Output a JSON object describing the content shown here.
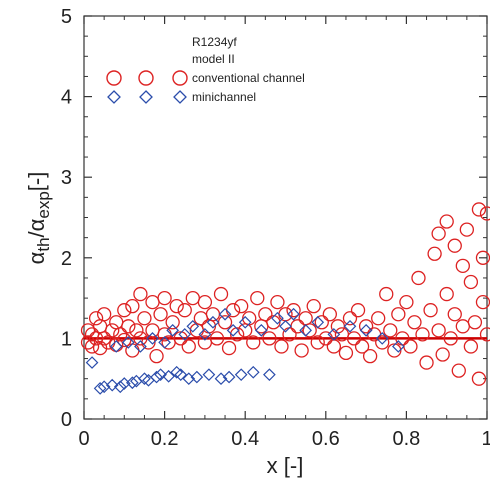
{
  "chart_data": {
    "type": "scatter",
    "title": "",
    "xlabel": "x [-]",
    "ylabel_parts": {
      "alpha": "α",
      "th": "th",
      "slash": "/",
      "exp": "exp",
      "unit": "[-]"
    },
    "xlim": [
      0,
      1
    ],
    "ylim": [
      0,
      5
    ],
    "x_ticks": [
      "0",
      "0.2",
      "0.4",
      "0.6",
      "0.8",
      "1"
    ],
    "y_ticks": [
      "0",
      "1",
      "2",
      "3",
      "4",
      "5"
    ],
    "legend": {
      "refrigerant": "R1234yf",
      "model": "model II",
      "placement": "top-center"
    },
    "reference_line": {
      "y": 1,
      "color": "#cc0000"
    },
    "series": [
      {
        "name": "conventional channel",
        "marker": "circle",
        "color": "#dd2222",
        "points": [
          [
            0.01,
            0.95
          ],
          [
            0.01,
            1.1
          ],
          [
            0.02,
            1.05
          ],
          [
            0.02,
            0.9
          ],
          [
            0.03,
            1.25
          ],
          [
            0.03,
            1.0
          ],
          [
            0.04,
            1.15
          ],
          [
            0.04,
            0.88
          ],
          [
            0.05,
            1.0
          ],
          [
            0.05,
            1.3
          ],
          [
            0.06,
            0.95
          ],
          [
            0.07,
            1.1
          ],
          [
            0.08,
            1.2
          ],
          [
            0.08,
            0.92
          ],
          [
            0.09,
            1.05
          ],
          [
            0.1,
            1.35
          ],
          [
            0.1,
            0.98
          ],
          [
            0.11,
            1.15
          ],
          [
            0.12,
            0.85
          ],
          [
            0.12,
            1.4
          ],
          [
            0.13,
            1.1
          ],
          [
            0.14,
            1.55
          ],
          [
            0.14,
            1.0
          ],
          [
            0.15,
            1.25
          ],
          [
            0.16,
            0.95
          ],
          [
            0.17,
            1.45
          ],
          [
            0.17,
            1.1
          ],
          [
            0.18,
            0.78
          ],
          [
            0.19,
            1.3
          ],
          [
            0.2,
            1.05
          ],
          [
            0.2,
            1.5
          ],
          [
            0.21,
            0.95
          ],
          [
            0.22,
            1.2
          ],
          [
            0.23,
            1.4
          ],
          [
            0.24,
            1.0
          ],
          [
            0.25,
            1.35
          ],
          [
            0.26,
            0.9
          ],
          [
            0.27,
            1.5
          ],
          [
            0.28,
            1.1
          ],
          [
            0.29,
            1.25
          ],
          [
            0.3,
            0.95
          ],
          [
            0.3,
            1.45
          ],
          [
            0.31,
            1.15
          ],
          [
            0.32,
            1.3
          ],
          [
            0.33,
            1.0
          ],
          [
            0.34,
            1.55
          ],
          [
            0.35,
            1.2
          ],
          [
            0.36,
            0.88
          ],
          [
            0.37,
            1.35
          ],
          [
            0.38,
            1.05
          ],
          [
            0.39,
            1.4
          ],
          [
            0.4,
            1.1
          ],
          [
            0.41,
            1.25
          ],
          [
            0.42,
            0.95
          ],
          [
            0.43,
            1.5
          ],
          [
            0.44,
            1.15
          ],
          [
            0.45,
            1.3
          ],
          [
            0.46,
            1.0
          ],
          [
            0.47,
            1.2
          ],
          [
            0.48,
            1.45
          ],
          [
            0.49,
            0.9
          ],
          [
            0.5,
            1.3
          ],
          [
            0.51,
            1.05
          ],
          [
            0.52,
            1.35
          ],
          [
            0.53,
            1.15
          ],
          [
            0.54,
            0.85
          ],
          [
            0.55,
            1.25
          ],
          [
            0.56,
            1.1
          ],
          [
            0.57,
            1.4
          ],
          [
            0.58,
            0.95
          ],
          [
            0.59,
            1.2
          ],
          [
            0.6,
            1.0
          ],
          [
            0.61,
            1.3
          ],
          [
            0.62,
            0.9
          ],
          [
            0.63,
            1.15
          ],
          [
            0.64,
            1.05
          ],
          [
            0.65,
            0.82
          ],
          [
            0.66,
            1.25
          ],
          [
            0.67,
            1.0
          ],
          [
            0.68,
            1.35
          ],
          [
            0.69,
            0.9
          ],
          [
            0.7,
            1.15
          ],
          [
            0.71,
            0.78
          ],
          [
            0.72,
            1.05
          ],
          [
            0.73,
            1.25
          ],
          [
            0.74,
            0.95
          ],
          [
            0.75,
            1.55
          ],
          [
            0.76,
            1.1
          ],
          [
            0.77,
            0.85
          ],
          [
            0.78,
            1.3
          ],
          [
            0.79,
            1.0
          ],
          [
            0.8,
            1.45
          ],
          [
            0.81,
            0.9
          ],
          [
            0.82,
            1.2
          ],
          [
            0.83,
            1.75
          ],
          [
            0.84,
            1.05
          ],
          [
            0.85,
            0.7
          ],
          [
            0.86,
            1.35
          ],
          [
            0.87,
            2.05
          ],
          [
            0.88,
            1.1
          ],
          [
            0.88,
            2.3
          ],
          [
            0.89,
            0.8
          ],
          [
            0.9,
            1.55
          ],
          [
            0.9,
            2.45
          ],
          [
            0.91,
            1.0
          ],
          [
            0.92,
            2.15
          ],
          [
            0.92,
            1.3
          ],
          [
            0.93,
            0.6
          ],
          [
            0.94,
            1.9
          ],
          [
            0.94,
            1.15
          ],
          [
            0.95,
            2.35
          ],
          [
            0.96,
            0.9
          ],
          [
            0.96,
            1.7
          ],
          [
            0.97,
            1.2
          ],
          [
            0.98,
            2.6
          ],
          [
            0.98,
            0.5
          ],
          [
            0.99,
            2.0
          ],
          [
            0.99,
            1.45
          ],
          [
            1.0,
            2.55
          ],
          [
            1.0,
            1.05
          ]
        ]
      },
      {
        "name": "minichannel",
        "marker": "diamond",
        "color": "#2b4dab",
        "points": [
          [
            0.02,
            0.7
          ],
          [
            0.04,
            0.38
          ],
          [
            0.05,
            0.4
          ],
          [
            0.07,
            0.42
          ],
          [
            0.08,
            0.9
          ],
          [
            0.09,
            0.4
          ],
          [
            0.1,
            0.44
          ],
          [
            0.11,
            0.95
          ],
          [
            0.12,
            0.45
          ],
          [
            0.13,
            0.47
          ],
          [
            0.14,
            0.9
          ],
          [
            0.15,
            0.5
          ],
          [
            0.16,
            0.48
          ],
          [
            0.17,
            1.0
          ],
          [
            0.18,
            0.52
          ],
          [
            0.19,
            0.55
          ],
          [
            0.2,
            0.95
          ],
          [
            0.21,
            0.53
          ],
          [
            0.22,
            1.1
          ],
          [
            0.23,
            0.58
          ],
          [
            0.24,
            0.55
          ],
          [
            0.25,
            1.05
          ],
          [
            0.26,
            0.5
          ],
          [
            0.27,
            1.15
          ],
          [
            0.28,
            0.52
          ],
          [
            0.3,
            1.05
          ],
          [
            0.31,
            0.55
          ],
          [
            0.32,
            1.2
          ],
          [
            0.34,
            0.5
          ],
          [
            0.35,
            1.3
          ],
          [
            0.36,
            0.52
          ],
          [
            0.37,
            1.1
          ],
          [
            0.39,
            0.55
          ],
          [
            0.4,
            1.2
          ],
          [
            0.42,
            0.58
          ],
          [
            0.44,
            1.1
          ],
          [
            0.46,
            0.55
          ],
          [
            0.48,
            1.25
          ],
          [
            0.5,
            1.15
          ],
          [
            0.52,
            1.3
          ],
          [
            0.55,
            1.1
          ],
          [
            0.58,
            1.2
          ],
          [
            0.62,
            1.05
          ],
          [
            0.66,
            1.15
          ],
          [
            0.7,
            1.1
          ],
          [
            0.74,
            1.0
          ],
          [
            0.78,
            0.9
          ]
        ]
      }
    ]
  }
}
